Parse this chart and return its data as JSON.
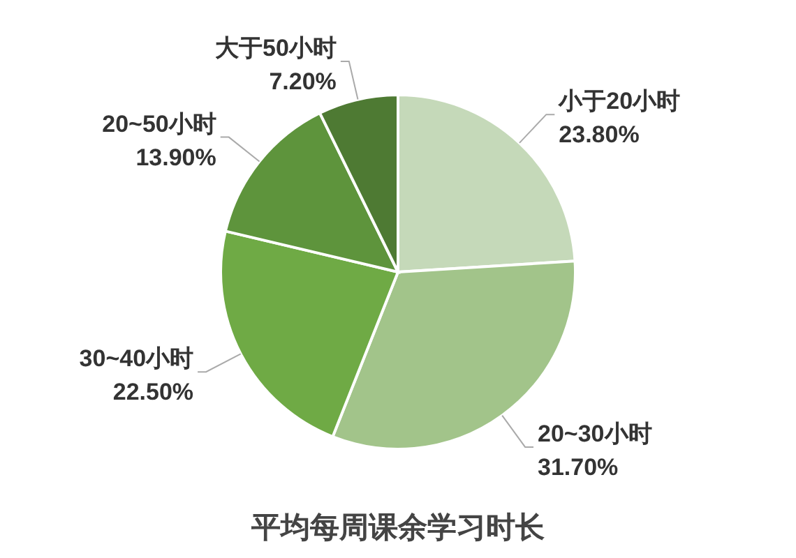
{
  "chart_data": {
    "type": "pie",
    "title": "平均每周课余学习时长",
    "categories": [
      "小于20小时",
      "20~30小时",
      "30~40小时",
      "20~50小时",
      "大于50小时"
    ],
    "values": [
      23.8,
      31.7,
      22.5,
      13.9,
      7.2
    ],
    "value_labels": [
      "23.80%",
      "31.70%",
      "22.50%",
      "13.90%",
      "7.20%"
    ],
    "colors": [
      "#c5d9b9",
      "#a2c48a",
      "#6faa45",
      "#5e943c",
      "#4e7a33"
    ]
  }
}
